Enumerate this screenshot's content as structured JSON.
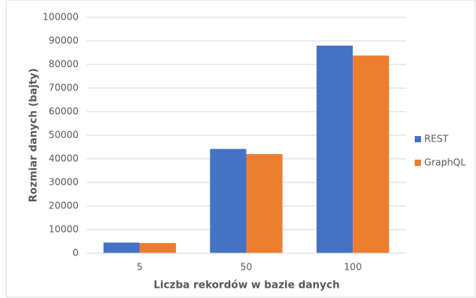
{
  "chart_data": {
    "type": "bar",
    "x_label": "Liczba rekordów w bazie danych",
    "y_label": "Rozmiar danych (bajty)",
    "categories": [
      "5",
      "50",
      "100"
    ],
    "series": [
      {
        "name": "REST",
        "color": "#4472c4",
        "values": [
          4500,
          44200,
          88000
        ]
      },
      {
        "name": "GraphQL",
        "color": "#ed7d31",
        "values": [
          4300,
          42000,
          83800
        ]
      }
    ],
    "ylim": [
      0,
      100000
    ],
    "yticks": [
      0,
      10000,
      20000,
      30000,
      40000,
      50000,
      60000,
      70000,
      80000,
      90000,
      100000
    ],
    "grid": true,
    "legend": "right"
  }
}
